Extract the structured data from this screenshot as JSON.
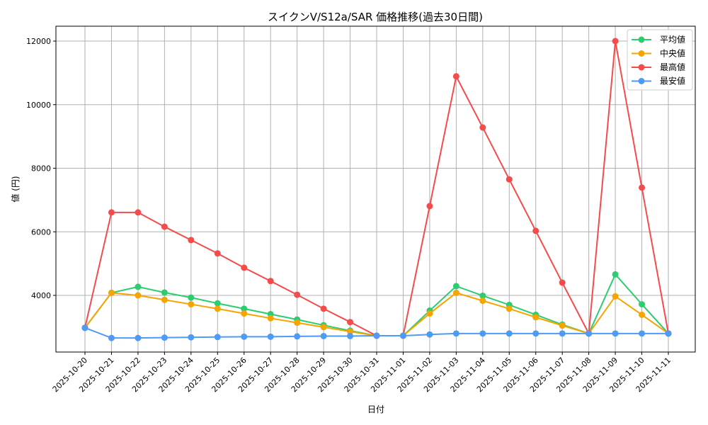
{
  "chart_data": {
    "type": "line",
    "title": "スイクンV/S12a/SAR 価格推移(過去30日間)",
    "xlabel": "日付",
    "ylabel": "値 (円)",
    "ylim": [
      2200,
      12450
    ],
    "yticks": [
      4000,
      6000,
      8000,
      10000,
      12000
    ],
    "grid": true,
    "legend_position": "upper right",
    "categories": [
      "2025-10-20",
      "2025-10-21",
      "2025-10-22",
      "2025-10-23",
      "2025-10-24",
      "2025-10-25",
      "2025-10-26",
      "2025-10-27",
      "2025-10-28",
      "2025-10-29",
      "2025-10-30",
      "2025-10-31",
      "2025-11-01",
      "2025-11-02",
      "2025-11-03",
      "2025-11-04",
      "2025-11-05",
      "2025-11-06",
      "2025-11-07",
      "2025-11-08",
      "2025-11-09",
      "2025-11-10",
      "2025-11-11"
    ],
    "series": [
      {
        "name": "平均値",
        "color": "#2ecc71",
        "values": [
          2980,
          4080,
          4270,
          4090,
          3930,
          3750,
          3580,
          3410,
          3240,
          3060,
          2890,
          2730,
          2730,
          3520,
          4290,
          3990,
          3700,
          3390,
          3080,
          2800,
          4660,
          3720,
          2800
        ]
      },
      {
        "name": "中央値",
        "color": "#f5a500",
        "values": [
          2980,
          4080,
          4000,
          3860,
          3720,
          3580,
          3430,
          3280,
          3140,
          3000,
          2860,
          2730,
          2730,
          3430,
          4080,
          3830,
          3580,
          3310,
          3050,
          2800,
          3970,
          3390,
          2800
        ]
      },
      {
        "name": "最高値",
        "color": "#f44b4b",
        "values": [
          2980,
          6610,
          6610,
          6160,
          5740,
          5320,
          4870,
          4450,
          4020,
          3580,
          3160,
          2730,
          2730,
          6810,
          10890,
          9280,
          7650,
          6030,
          4400,
          2800,
          12000,
          7390,
          2800
        ]
      },
      {
        "name": "最安値",
        "color": "#4d9bf5",
        "values": [
          2980,
          2660,
          2660,
          2670,
          2680,
          2690,
          2700,
          2700,
          2710,
          2720,
          2720,
          2730,
          2730,
          2770,
          2800,
          2800,
          2800,
          2800,
          2800,
          2800,
          2800,
          2800,
          2800
        ]
      }
    ]
  }
}
